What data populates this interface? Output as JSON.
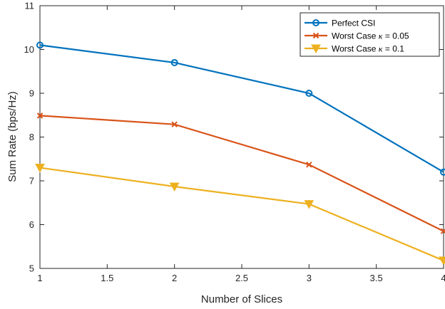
{
  "chart_data": {
    "type": "line",
    "xlabel": "Number of Slices",
    "ylabel": "Sum Rate (bps/Hz)",
    "xlim": [
      1,
      4
    ],
    "ylim": [
      5,
      11
    ],
    "xticks": [
      1,
      1.5,
      2,
      2.5,
      3,
      3.5,
      4
    ],
    "xtick_labels": [
      "1",
      "1.5",
      "2",
      "2.5",
      "3",
      "3.5",
      "4"
    ],
    "yticks": [
      5,
      6,
      7,
      8,
      9,
      10,
      11
    ],
    "ytick_labels": [
      "5",
      "6",
      "7",
      "8",
      "9",
      "10",
      "11"
    ],
    "x": [
      1,
      2,
      3,
      4
    ],
    "grid": false,
    "legend_position": "top-right",
    "series": [
      {
        "name": "Perfect CSI",
        "name_parts": [
          "Perfect CSI"
        ],
        "values": [
          10.1,
          9.7,
          9.0,
          7.2
        ],
        "color": "#0072BD",
        "marker": "circle"
      },
      {
        "name": "Worst Case κ = 0.05",
        "name_parts": [
          "Worst Case ",
          "κ",
          " = 0.05"
        ],
        "values": [
          8.49,
          8.29,
          7.37,
          5.85
        ],
        "color": "#D95319",
        "marker": "x"
      },
      {
        "name": "Worst Case κ = 0.1",
        "name_parts": [
          "Worst Case ",
          "κ",
          " = 0.1"
        ],
        "values": [
          7.3,
          6.87,
          6.47,
          5.18
        ],
        "color": "#EDB120",
        "marker": "triangle-down"
      }
    ]
  }
}
